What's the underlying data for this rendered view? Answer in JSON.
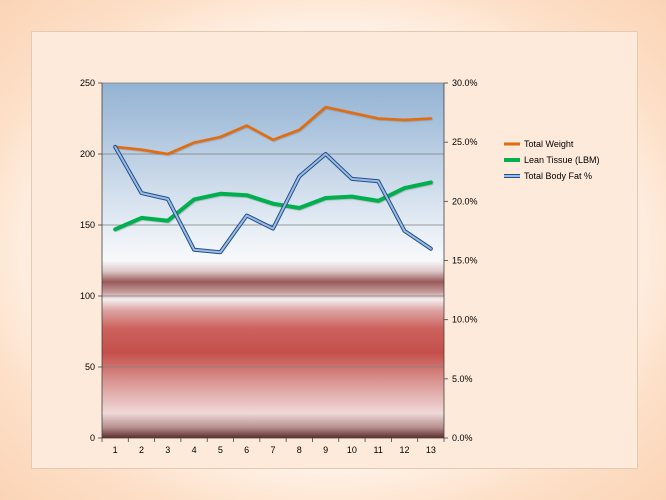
{
  "chart_data": {
    "type": "line",
    "title": "",
    "categories": [
      "1",
      "2",
      "3",
      "4",
      "5",
      "6",
      "7",
      "8",
      "9",
      "10",
      "11",
      "12",
      "13"
    ],
    "series": [
      {
        "name": "Total Weight",
        "axis": "left",
        "color": "#e36c0a",
        "values": [
          205,
          203,
          200,
          208,
          212,
          220,
          210,
          217,
          233,
          229,
          225,
          224,
          225
        ]
      },
      {
        "name": "Lean Tissue (LBM)",
        "axis": "left",
        "color": "#00b050",
        "values": [
          147,
          155,
          153,
          168,
          172,
          171,
          165,
          162,
          169,
          170,
          167,
          176,
          180
        ]
      },
      {
        "name": "Total Body Fat %",
        "axis": "right",
        "color": "#4f81bd",
        "values": [
          24.6,
          20.7,
          20.2,
          15.9,
          15.7,
          18.8,
          17.7,
          22.1,
          24.0,
          21.9,
          21.7,
          17.5,
          16.0
        ]
      }
    ],
    "y_left": {
      "min": 0,
      "max": 250,
      "step": 50,
      "tick_labels": [
        "0",
        "50",
        "100",
        "150",
        "200",
        "250"
      ]
    },
    "y_right": {
      "min": 0,
      "max": 30,
      "step": 5,
      "tick_labels": [
        "0.0%",
        "5.0%",
        "10.0%",
        "15.0%",
        "20.0%",
        "25.0%",
        "30.0%"
      ]
    },
    "legend": [
      "Total Weight",
      "Lean Tissue (LBM)",
      "Total Body Fat %"
    ],
    "legend_position": "right",
    "grid": true
  }
}
